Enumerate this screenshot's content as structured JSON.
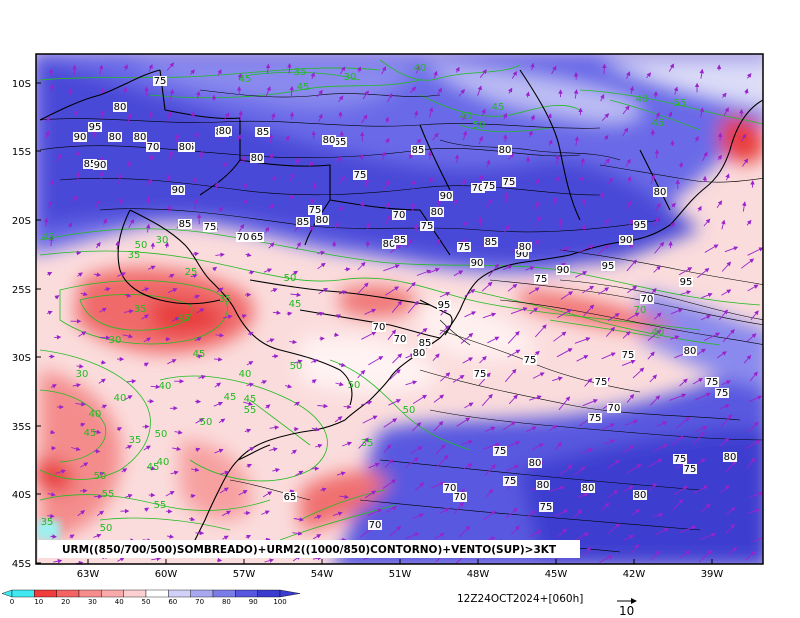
{
  "map": {
    "title": "URM((850/700/500)SOMBREADO)+URM2((1000/850)CONTORNO)+VENTO(SUP)>3KT",
    "timestamp": "12Z24OCT2024+[060h]",
    "lat_labels": [
      "10S",
      "15S",
      "20S",
      "25S",
      "30S",
      "35S",
      "40S",
      "45S"
    ],
    "lon_labels": [
      "63W",
      "60W",
      "57W",
      "54W",
      "51W",
      "48W",
      "45W",
      "42W",
      "39W"
    ],
    "wind_reference": {
      "label": "10",
      "units": "kt"
    },
    "colors": {
      "low_humidity": "#e8383a",
      "mid_humidity": "#f8d4d4",
      "high_humidity": "#5a5ae6",
      "contour_green": "#22bb22",
      "contour_black": "#000000",
      "wind_vector": "#9922cc"
    }
  },
  "colorbar": {
    "labels": [
      "0",
      "10",
      "20",
      "30",
      "40",
      "50",
      "60",
      "70",
      "80",
      "90",
      "100"
    ],
    "colors": [
      "#40e8f0",
      "#f03c3c",
      "#f46464",
      "#f78c8c",
      "#faaaaa",
      "#fcd0d0",
      "#ffffff",
      "#d0d0f8",
      "#a8a8f0",
      "#7c7ce8",
      "#5656e0",
      "#3b3bd0"
    ]
  },
  "contour_labels": [
    {
      "t": "75",
      "c": "k"
    },
    {
      "t": "80",
      "c": "k"
    },
    {
      "t": "95",
      "c": "k"
    },
    {
      "t": "90",
      "c": "k"
    },
    {
      "t": "85",
      "c": "k"
    },
    {
      "t": "80",
      "c": "k"
    },
    {
      "t": "70",
      "c": "k"
    },
    {
      "t": "80",
      "c": "k"
    },
    {
      "t": "90",
      "c": "k"
    },
    {
      "t": "85",
      "c": "k"
    },
    {
      "t": "80",
      "c": "k"
    },
    {
      "t": "85",
      "c": "k"
    },
    {
      "t": "75",
      "c": "k"
    },
    {
      "t": "80",
      "c": "k"
    },
    {
      "t": "85",
      "c": "k"
    },
    {
      "t": "80",
      "c": "k"
    },
    {
      "t": "90",
      "c": "k"
    },
    {
      "t": "85",
      "c": "k"
    },
    {
      "t": "75",
      "c": "k"
    },
    {
      "t": "70",
      "c": "k"
    },
    {
      "t": "65",
      "c": "k"
    },
    {
      "t": "85",
      "c": "k"
    },
    {
      "t": "80",
      "c": "k"
    },
    {
      "t": "75",
      "c": "k"
    },
    {
      "t": "65",
      "c": "k"
    },
    {
      "t": "80",
      "c": "k"
    },
    {
      "t": "75",
      "c": "k"
    },
    {
      "t": "80",
      "c": "k"
    },
    {
      "t": "85",
      "c": "k"
    },
    {
      "t": "70",
      "c": "k"
    },
    {
      "t": "75",
      "c": "k"
    },
    {
      "t": "80",
      "c": "k"
    },
    {
      "t": "90",
      "c": "k"
    },
    {
      "t": "85",
      "c": "k"
    },
    {
      "t": "80",
      "c": "k"
    },
    {
      "t": "70",
      "c": "k"
    },
    {
      "t": "75",
      "c": "k"
    },
    {
      "t": "90",
      "c": "k"
    },
    {
      "t": "75",
      "c": "k"
    },
    {
      "t": "85",
      "c": "k"
    },
    {
      "t": "75",
      "c": "k"
    },
    {
      "t": "90",
      "c": "k"
    },
    {
      "t": "80",
      "c": "k"
    },
    {
      "t": "95",
      "c": "k"
    },
    {
      "t": "90",
      "c": "k"
    },
    {
      "t": "95",
      "c": "k"
    },
    {
      "t": "90",
      "c": "k"
    },
    {
      "t": "95",
      "c": "k"
    },
    {
      "t": "75",
      "c": "k"
    },
    {
      "t": "95",
      "c": "k"
    },
    {
      "t": "80",
      "c": "k"
    },
    {
      "t": "70",
      "c": "k"
    },
    {
      "t": "70",
      "c": "k"
    },
    {
      "t": "70",
      "c": "k"
    },
    {
      "t": "85",
      "c": "k"
    },
    {
      "t": "80",
      "c": "k"
    },
    {
      "t": "75",
      "c": "k"
    },
    {
      "t": "75",
      "c": "k"
    },
    {
      "t": "75",
      "c": "k"
    },
    {
      "t": "75",
      "c": "k"
    },
    {
      "t": "75",
      "c": "k"
    },
    {
      "t": "80",
      "c": "k"
    },
    {
      "t": "70",
      "c": "k"
    },
    {
      "t": "75",
      "c": "k"
    },
    {
      "t": "75",
      "c": "k"
    },
    {
      "t": "75",
      "c": "k"
    },
    {
      "t": "80",
      "c": "k"
    },
    {
      "t": "75",
      "c": "k"
    },
    {
      "t": "80",
      "c": "k"
    },
    {
      "t": "70",
      "c": "k"
    },
    {
      "t": "80",
      "c": "k"
    },
    {
      "t": "80",
      "c": "k"
    },
    {
      "t": "80",
      "c": "k"
    },
    {
      "t": "75",
      "c": "k"
    },
    {
      "t": "75",
      "c": "k"
    },
    {
      "t": "75",
      "c": "k"
    },
    {
      "t": "70",
      "c": "k"
    },
    {
      "t": "65",
      "c": "k"
    },
    {
      "t": "70",
      "c": "k"
    },
    {
      "t": "45",
      "c": "g"
    },
    {
      "t": "45",
      "c": "g"
    },
    {
      "t": "40",
      "c": "g"
    },
    {
      "t": "45",
      "c": "g"
    },
    {
      "t": "40",
      "c": "g"
    },
    {
      "t": "50",
      "c": "g"
    },
    {
      "t": "35",
      "c": "g"
    },
    {
      "t": "30",
      "c": "g"
    },
    {
      "t": "40",
      "c": "g"
    },
    {
      "t": "45",
      "c": "g"
    },
    {
      "t": "55",
      "c": "g"
    },
    {
      "t": "45",
      "c": "g"
    },
    {
      "t": "50",
      "c": "g"
    },
    {
      "t": "35",
      "c": "g"
    },
    {
      "t": "30",
      "c": "g"
    },
    {
      "t": "25",
      "c": "g"
    },
    {
      "t": "45",
      "c": "g"
    },
    {
      "t": "50",
      "c": "g"
    },
    {
      "t": "35",
      "c": "g"
    },
    {
      "t": "35",
      "c": "g"
    },
    {
      "t": "45",
      "c": "g"
    },
    {
      "t": "40",
      "c": "g"
    },
    {
      "t": "30",
      "c": "g"
    },
    {
      "t": "45",
      "c": "g"
    },
    {
      "t": "50",
      "c": "g"
    },
    {
      "t": "30",
      "c": "g"
    },
    {
      "t": "40",
      "c": "g"
    },
    {
      "t": "40",
      "c": "g"
    },
    {
      "t": "40",
      "c": "g"
    },
    {
      "t": "35",
      "c": "g"
    },
    {
      "t": "45",
      "c": "g"
    },
    {
      "t": "45",
      "c": "g"
    },
    {
      "t": "55",
      "c": "g"
    },
    {
      "t": "50",
      "c": "g"
    },
    {
      "t": "50",
      "c": "g"
    },
    {
      "t": "45",
      "c": "g"
    },
    {
      "t": "40",
      "c": "g"
    },
    {
      "t": "35",
      "c": "g"
    },
    {
      "t": "50",
      "c": "g"
    },
    {
      "t": "50",
      "c": "g"
    },
    {
      "t": "55",
      "c": "g"
    },
    {
      "t": "55",
      "c": "g"
    },
    {
      "t": "50",
      "c": "g"
    },
    {
      "t": "35",
      "c": "g"
    },
    {
      "t": "50",
      "c": "g"
    },
    {
      "t": "45",
      "c": "g"
    },
    {
      "t": "70",
      "c": "g"
    },
    {
      "t": "40",
      "c": "g"
    }
  ]
}
